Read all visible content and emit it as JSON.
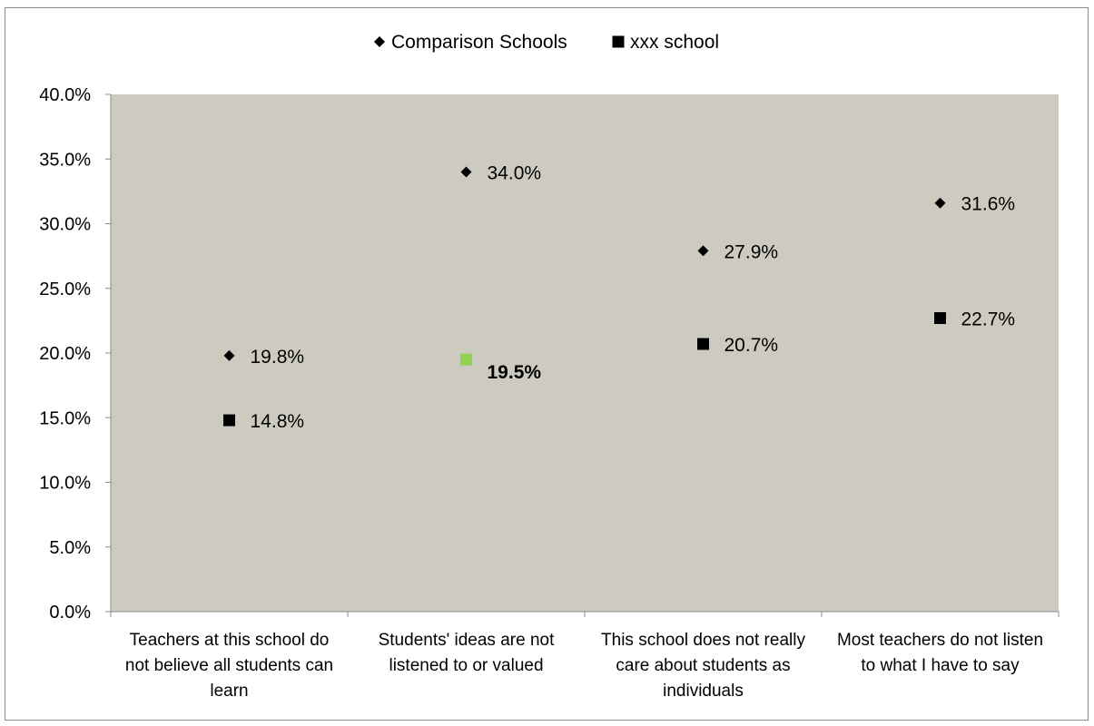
{
  "chart_data": {
    "type": "scatter",
    "title": "",
    "xlabel": "",
    "ylabel": "",
    "ylim": [
      0,
      40
    ],
    "y_tick_step": 5,
    "y_tick_format": "percent_1dp",
    "grid": false,
    "legend_position": "top",
    "plot_background": "#cdcbc0",
    "categories": [
      "Teachers at this school do not believe all students can learn",
      "Students' ideas are not listened to or valued",
      "This school does not really care about students as individuals",
      "Most teachers do not listen to what I have to say"
    ],
    "category_label_lines": [
      [
        "Teachers at this school do",
        "not believe all students can",
        "learn"
      ],
      [
        "Students' ideas are not",
        "listened to or valued"
      ],
      [
        "This school does not really",
        "care about students as",
        "individuals"
      ],
      [
        "Most teachers do not listen",
        "to what I have to say"
      ]
    ],
    "series": [
      {
        "name": "Comparison Schools",
        "marker": "diamond",
        "color": "#000000",
        "values": [
          19.8,
          34.0,
          27.9,
          31.6
        ],
        "labels": [
          "19.8%",
          "34.0%",
          "27.9%",
          "31.6%"
        ]
      },
      {
        "name": "xxx school",
        "marker": "square",
        "color": "#000000",
        "highlight_color": "#92d050",
        "highlight_index": 1,
        "values": [
          14.8,
          19.5,
          20.7,
          22.7
        ],
        "labels": [
          "14.8%",
          "19.5%",
          "20.7%",
          "22.7%"
        ]
      }
    ]
  }
}
